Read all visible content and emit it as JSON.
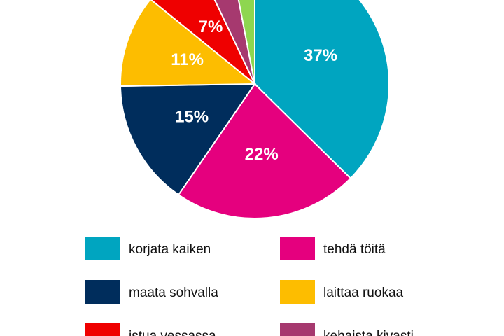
{
  "chart_data": {
    "type": "pie",
    "categories": [
      "korjata kaiken",
      "tehdä töitä",
      "maata sohvalla",
      "laittaa ruokaa",
      "istua vessassa",
      "kehaista kivasti",
      null
    ],
    "values": [
      37,
      22,
      15,
      11,
      7,
      4,
      3
    ],
    "value_labels": [
      "37%",
      "22%",
      "15%",
      "11%",
      "7%",
      null,
      null
    ],
    "colors": [
      "#00a5c0",
      "#e5007e",
      "#002d5c",
      "#fdbd00",
      "#ef0000",
      "#a6396f",
      "#8ed650"
    ],
    "legend": true
  }
}
